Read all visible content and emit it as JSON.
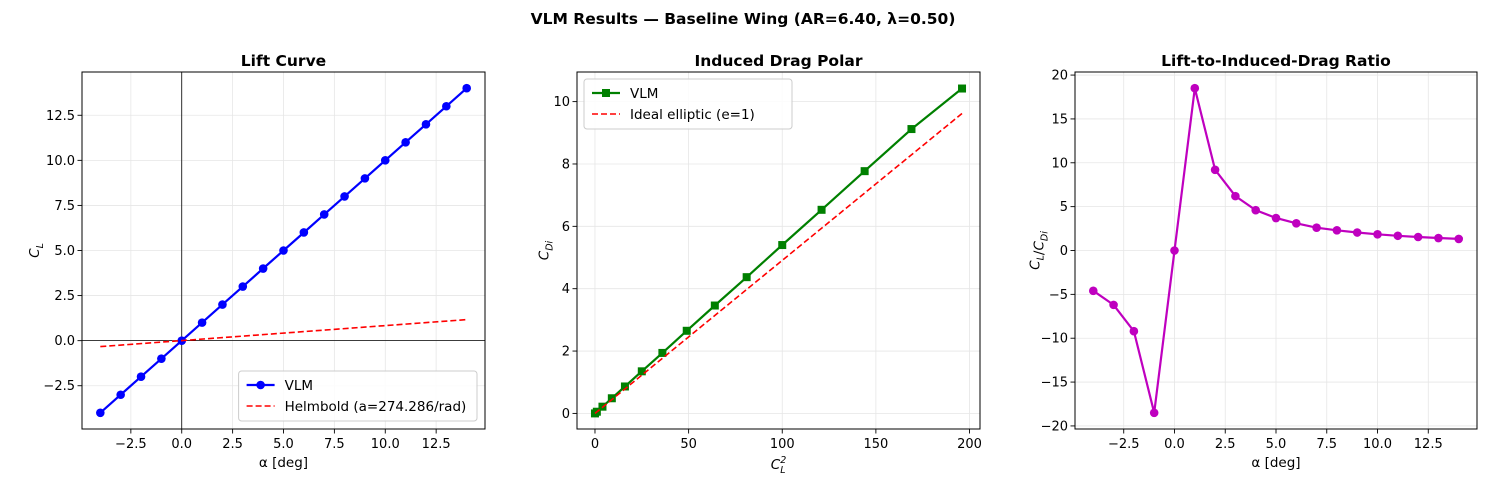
{
  "figure": {
    "suptitle": "VLM Results — Baseline Wing (AR=6.40, λ=0.50)"
  },
  "chart_data": [
    {
      "type": "line",
      "title": "Lift Curve",
      "xlabel": "α [deg]",
      "ylabel": "C_L",
      "xlim": [
        -4.9,
        14.9
      ],
      "ylim": [
        -4.9,
        14.9
      ],
      "xticks": [
        -2.5,
        0.0,
        2.5,
        5.0,
        7.5,
        10.0,
        12.5
      ],
      "xtick_labels": [
        "−2.5",
        "0.0",
        "2.5",
        "5.0",
        "7.5",
        "10.0",
        "12.5"
      ],
      "yticks": [
        -2.5,
        0.0,
        2.5,
        5.0,
        7.5,
        10.0,
        12.5
      ],
      "ytick_labels": [
        "−2.5",
        "0.0",
        "2.5",
        "5.0",
        "7.5",
        "10.0",
        "12.5"
      ],
      "grid": true,
      "zero_lines": true,
      "legend_position": "lower-right",
      "series": [
        {
          "name": "VLM",
          "color": "#0000ff",
          "style": "solid",
          "marker": "circle",
          "x": [
            -4,
            -3,
            -2,
            -1,
            0,
            1,
            2,
            3,
            4,
            5,
            6,
            7,
            8,
            9,
            10,
            11,
            12,
            13,
            14
          ],
          "y": [
            -4,
            -3,
            -2,
            -1,
            0,
            1,
            2,
            3,
            4,
            5,
            6,
            7,
            8,
            9,
            10,
            11,
            12,
            13,
            14
          ]
        },
        {
          "name": "Helmbold (a=274.286/rad)",
          "color": "#ff0000",
          "style": "dashed",
          "marker": "none",
          "x": [
            -4,
            14
          ],
          "y": [
            -0.33,
            1.17
          ]
        }
      ]
    },
    {
      "type": "line",
      "title": "Induced Drag Polar",
      "xlabel": "C_L^2",
      "ylabel": "C_Di",
      "xlim": [
        -9.6,
        205.6
      ],
      "ylim": [
        -0.5,
        10.95
      ],
      "xticks": [
        0,
        50,
        100,
        150,
        200
      ],
      "xtick_labels": [
        "0",
        "50",
        "100",
        "150",
        "200"
      ],
      "yticks": [
        0,
        2,
        4,
        6,
        8,
        10
      ],
      "ytick_labels": [
        "0",
        "2",
        "4",
        "6",
        "8",
        "10"
      ],
      "grid": true,
      "zero_lines": false,
      "legend_position": "upper-left",
      "series": [
        {
          "name": "VLM",
          "color": "#008000",
          "style": "solid",
          "marker": "square",
          "x": [
            0,
            1,
            4,
            9,
            16,
            25,
            36,
            49,
            64,
            81,
            100,
            121,
            144,
            169,
            196
          ],
          "y": [
            0,
            0.054,
            0.216,
            0.486,
            0.864,
            1.35,
            1.94,
            2.65,
            3.46,
            4.37,
            5.4,
            6.53,
            7.77,
            9.12,
            10.42
          ]
        },
        {
          "name": "Ideal elliptic (e=1)",
          "color": "#ff0000",
          "style": "dashed",
          "marker": "none",
          "x": [
            0,
            196
          ],
          "y": [
            0,
            9.62
          ]
        }
      ]
    },
    {
      "type": "line",
      "title": "Lift-to-Induced-Drag Ratio",
      "xlabel": "α [deg]",
      "ylabel": "C_L/C_Di",
      "xlim": [
        -4.9,
        14.9
      ],
      "ylim": [
        -20.35,
        20.35
      ],
      "xticks": [
        -2.5,
        0.0,
        2.5,
        5.0,
        7.5,
        10.0,
        12.5
      ],
      "xtick_labels": [
        "−2.5",
        "0.0",
        "2.5",
        "5.0",
        "7.5",
        "10.0",
        "12.5"
      ],
      "yticks": [
        -20,
        -15,
        -10,
        -5,
        0,
        5,
        10,
        15,
        20
      ],
      "ytick_labels": [
        "−20",
        "−15",
        "−10",
        "−5",
        "0",
        "5",
        "10",
        "15",
        "20"
      ],
      "grid": true,
      "zero_lines": false,
      "legend_position": "none",
      "series": [
        {
          "name": "",
          "color": "#bf00bf",
          "style": "solid",
          "marker": "circle",
          "x": [
            -4,
            -3,
            -2,
            -1,
            0,
            1,
            2,
            3,
            4,
            5,
            6,
            7,
            8,
            9,
            10,
            11,
            12,
            13,
            14
          ],
          "y": [
            -4.6,
            -6.2,
            -9.2,
            -18.5,
            0,
            18.5,
            9.2,
            6.2,
            4.6,
            3.7,
            3.1,
            2.6,
            2.3,
            2.05,
            1.85,
            1.68,
            1.54,
            1.42,
            1.32
          ]
        }
      ]
    }
  ]
}
